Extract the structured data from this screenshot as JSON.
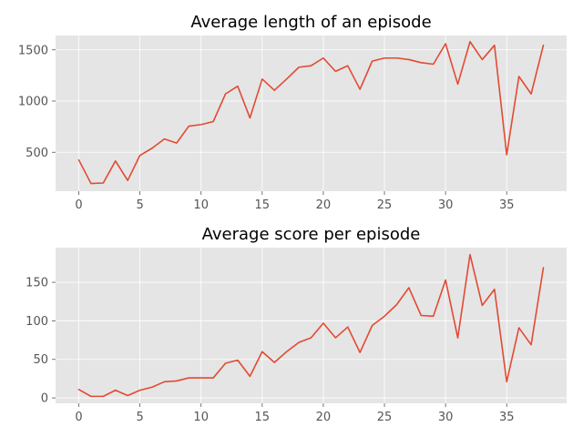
{
  "chart_data": [
    {
      "type": "line",
      "title": "Average length of an episode",
      "xlabel": "",
      "ylabel": "",
      "grid": true,
      "color": "#e24a33",
      "xlim": [
        -1.9,
        39.9
      ],
      "ylim": [
        120,
        1640
      ],
      "xticks": [
        0,
        5,
        10,
        15,
        20,
        25,
        30,
        35
      ],
      "yticks": [
        500,
        1000,
        1500
      ],
      "x": [
        0,
        1,
        2,
        3,
        4,
        5,
        6,
        7,
        8,
        9,
        10,
        11,
        12,
        13,
        14,
        15,
        16,
        17,
        18,
        19,
        20,
        21,
        22,
        23,
        24,
        25,
        26,
        27,
        28,
        29,
        30,
        31,
        32,
        33,
        34,
        35,
        36,
        37,
        38
      ],
      "y": [
        425,
        195,
        200,
        415,
        225,
        470,
        540,
        630,
        590,
        755,
        770,
        800,
        1070,
        1145,
        835,
        1215,
        1105,
        1215,
        1330,
        1345,
        1420,
        1290,
        1345,
        1115,
        1390,
        1420,
        1420,
        1405,
        1375,
        1360,
        1560,
        1165,
        1580,
        1405,
        1545,
        475,
        1240,
        1070,
        1545
      ]
    },
    {
      "type": "line",
      "title": "Average score per episode",
      "xlabel": "",
      "ylabel": "",
      "grid": true,
      "color": "#e24a33",
      "xlim": [
        -1.9,
        39.9
      ],
      "ylim": [
        -7,
        195
      ],
      "xticks": [
        0,
        5,
        10,
        15,
        20,
        25,
        30,
        35
      ],
      "yticks": [
        0,
        50,
        100,
        150
      ],
      "x": [
        0,
        1,
        2,
        3,
        4,
        5,
        6,
        7,
        8,
        9,
        10,
        11,
        12,
        13,
        14,
        15,
        16,
        17,
        18,
        19,
        20,
        21,
        22,
        23,
        24,
        25,
        26,
        27,
        28,
        29,
        30,
        31,
        32,
        33,
        34,
        35,
        36,
        37,
        38
      ],
      "y": [
        11,
        2,
        2,
        10,
        3,
        10,
        14,
        21,
        22,
        26,
        26,
        26,
        45,
        49,
        28,
        60,
        46,
        60,
        72,
        78,
        97,
        78,
        92,
        59,
        94,
        106,
        121,
        143,
        107,
        106,
        153,
        78,
        186,
        120,
        141,
        21,
        91,
        69,
        169
      ]
    }
  ]
}
